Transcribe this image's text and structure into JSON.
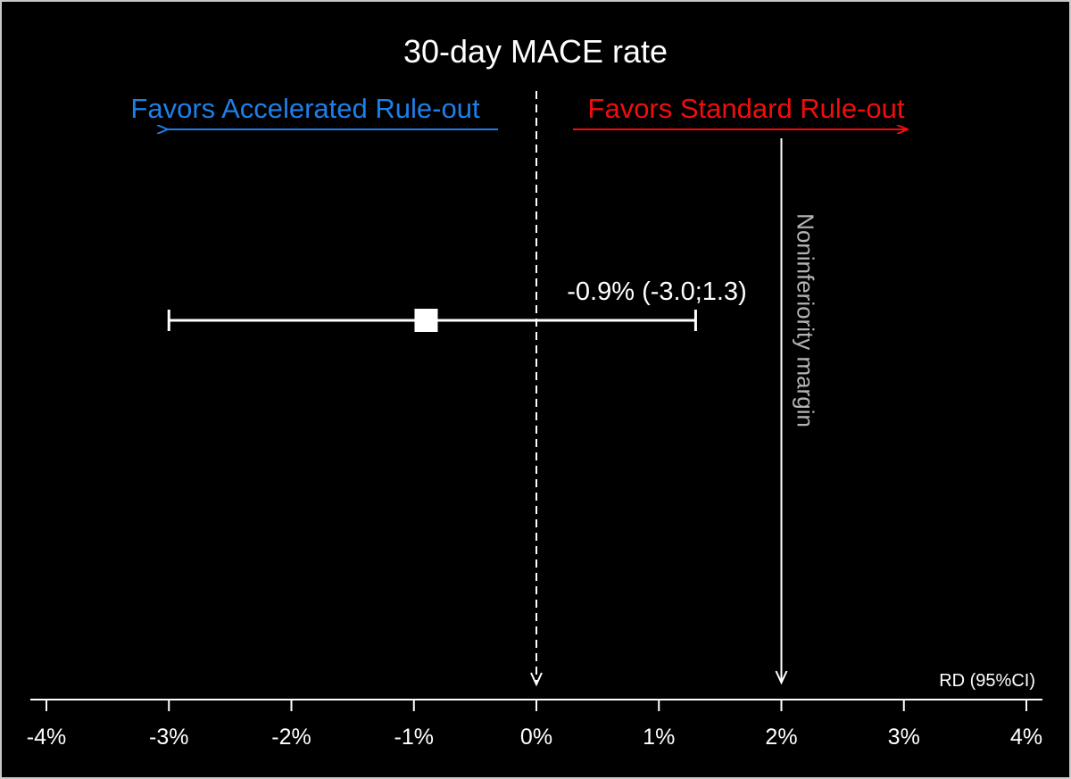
{
  "colors": {
    "background": "#000000",
    "foreground": "#ffffff",
    "favors_left": "#1e7fe8",
    "favors_right": "#f20d0d",
    "margin_label": "#b4b4b4"
  },
  "chart_data": {
    "type": "forest",
    "title": "30-day MACE rate",
    "xlabel": "RD (95%CI)",
    "xlim": [
      -4,
      4
    ],
    "x_ticks": [
      -4,
      -3,
      -2,
      -1,
      0,
      1,
      2,
      3,
      4
    ],
    "x_tick_labels": [
      "-4%",
      "-3%",
      "-2%",
      "-1%",
      "0%",
      "1%",
      "2%",
      "3%",
      "4%"
    ],
    "estimate": {
      "value": -0.9,
      "ci_low": -3.0,
      "ci_high": 1.3,
      "label": "-0.9% (-3.0;1.3)"
    },
    "reference_line": 0,
    "noninferiority_margin": {
      "value": 2,
      "label": "Noninferiority margin"
    },
    "favors_left": "Favors Accelerated Rule-out",
    "favors_right": "Favors Standard Rule-out"
  }
}
